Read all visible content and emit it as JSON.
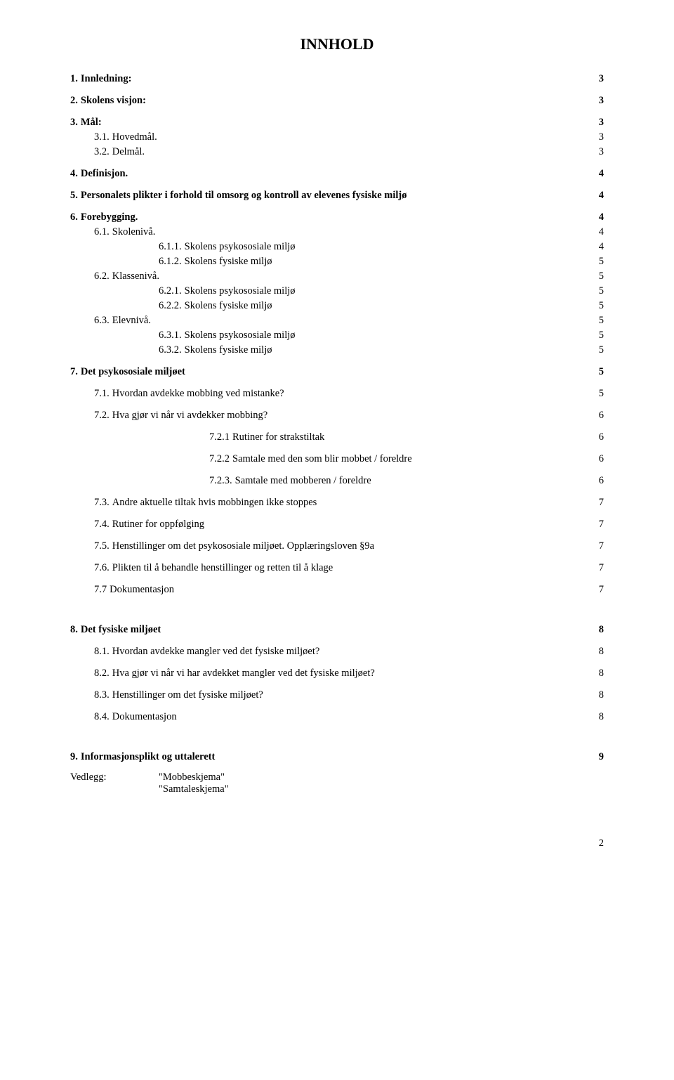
{
  "title": "INNHOLD",
  "page_number": "2",
  "entries": [
    {
      "num": "1.",
      "label": "Innledning:",
      "page": "3",
      "bold": true,
      "level": "level0",
      "gap": ""
    },
    {
      "num": "2.",
      "label": "Skolens visjon:",
      "page": "3",
      "bold": true,
      "level": "level0",
      "gap": "section-gap"
    },
    {
      "num": "3.",
      "label": "Mål:",
      "page": "3",
      "bold": true,
      "level": "level0",
      "gap": "section-gap"
    },
    {
      "num": "3.1.",
      "label": "Hovedmål.",
      "page": "3",
      "bold": false,
      "level": "level1",
      "gap": ""
    },
    {
      "num": "3.2.",
      "label": "Delmål.",
      "page": "3",
      "bold": false,
      "level": "level1",
      "gap": ""
    },
    {
      "num": "4.",
      "label": "Definisjon.",
      "page": "4",
      "bold": true,
      "level": "level0",
      "gap": "section-gap"
    },
    {
      "num": "5.",
      "label": "Personalets plikter i forhold til omsorg og kontroll av elevenes fysiske miljø",
      "page": "4",
      "bold": true,
      "level": "level0",
      "gap": "section-gap"
    },
    {
      "num": "6.",
      "label": "Forebygging.",
      "page": "4",
      "bold": true,
      "level": "level0",
      "gap": "section-gap"
    },
    {
      "num": "6.1.",
      "label": "Skolenivå.",
      "page": "4",
      "bold": false,
      "level": "level1",
      "gap": ""
    },
    {
      "num": "6.1.1.",
      "label": "Skolens psykososiale miljø",
      "page": "4",
      "bold": false,
      "level": "level2",
      "gap": ""
    },
    {
      "num": "6.1.2.",
      "label": "Skolens fysiske miljø",
      "page": "5",
      "bold": false,
      "level": "level2",
      "gap": ""
    },
    {
      "num": "6.2.",
      "label": "Klassenivå.",
      "page": "5",
      "bold": false,
      "level": "level1",
      "gap": ""
    },
    {
      "num": "6.2.1.",
      "label": "Skolens psykososiale miljø",
      "page": "5",
      "bold": false,
      "level": "level2",
      "gap": ""
    },
    {
      "num": "6.2.2.",
      "label": "Skolens fysiske miljø",
      "page": "5",
      "bold": false,
      "level": "level2",
      "gap": ""
    },
    {
      "num": "6.3.",
      "label": "Elevnivå.",
      "page": "5",
      "bold": false,
      "level": "level1",
      "gap": ""
    },
    {
      "num": "6.3.1.",
      "label": "Skolens psykososiale miljø",
      "page": "5",
      "bold": false,
      "level": "level2",
      "gap": ""
    },
    {
      "num": "6.3.2.",
      "label": "Skolens fysiske miljø",
      "page": "5",
      "bold": false,
      "level": "level2",
      "gap": ""
    },
    {
      "num": "7.",
      "label": "Det psykososiale miljøet",
      "page": "5",
      "bold": true,
      "level": "level0",
      "gap": "section-gap"
    },
    {
      "num": "7.1.",
      "label": "Hvordan avdekke mobbing ved mistanke?",
      "page": "5",
      "bold": false,
      "level": "level1",
      "gap": "section-gap"
    },
    {
      "num": "7.2.",
      "label": "Hva gjør vi når vi avdekker mobbing?",
      "page": "6",
      "bold": false,
      "level": "level1",
      "gap": "section-gap"
    },
    {
      "num": "7.2.1",
      "label": "Rutiner for strakstiltak",
      "page": "6",
      "bold": false,
      "level": "level2b",
      "gap": "section-gap"
    },
    {
      "num": "7.2.2",
      "label": "Samtale med den som blir mobbet / foreldre",
      "page": "6",
      "bold": false,
      "level": "level2b",
      "gap": "section-gap"
    },
    {
      "num": "7.2.3.",
      "label": "Samtale med mobberen / foreldre",
      "page": "6",
      "bold": false,
      "level": "level2b",
      "gap": "section-gap"
    },
    {
      "num": "7.3.",
      "label": "Andre aktuelle tiltak hvis mobbingen ikke stoppes",
      "page": "7",
      "bold": false,
      "level": "level1",
      "gap": "section-gap"
    },
    {
      "num": "7.4.",
      "label": "Rutiner for oppfølging",
      "page": "7",
      "bold": false,
      "level": "level1",
      "gap": "section-gap"
    },
    {
      "num": "7.5.",
      "label": "Henstillinger om det psykososiale miljøet. Opplæringsloven §9a",
      "page": "7",
      "bold": false,
      "level": "level1",
      "gap": "section-gap"
    },
    {
      "num": "7.6.",
      "label": "Plikten til å behandle henstillinger og retten til å klage",
      "page": "7",
      "bold": false,
      "level": "level1",
      "gap": "section-gap"
    },
    {
      "num": "7.7",
      "label": "Dokumentasjon",
      "page": "7",
      "bold": false,
      "level": "level1",
      "gap": "section-gap"
    },
    {
      "num": "8.",
      "label": "Det fysiske miljøet",
      "page": "8",
      "bold": true,
      "level": "level0",
      "gap": "big-gap"
    },
    {
      "num": "8.1.",
      "label": "Hvordan avdekke mangler ved det fysiske miljøet?",
      "page": "8",
      "bold": false,
      "level": "level1",
      "gap": "section-gap"
    },
    {
      "num": "8.2.",
      "label": "Hva gjør vi når vi har avdekket mangler ved det fysiske miljøet?",
      "page": "8",
      "bold": false,
      "level": "level1",
      "gap": "section-gap"
    },
    {
      "num": "8.3.",
      "label": "Henstillinger om det fysiske miljøet?",
      "page": "8",
      "bold": false,
      "level": "level1",
      "gap": "section-gap"
    },
    {
      "num": "8.4.",
      "label": "Dokumentasjon",
      "page": "8",
      "bold": false,
      "level": "level1",
      "gap": "section-gap"
    },
    {
      "num": "9.",
      "label": "Informasjonsplikt og uttalerett",
      "page": "9",
      "bold": true,
      "level": "level0",
      "gap": "big-gap"
    }
  ],
  "attachment": {
    "label": "Vedlegg:",
    "items": [
      "\"Mobbeskjema\"",
      "\"Samtaleskjema\""
    ]
  }
}
